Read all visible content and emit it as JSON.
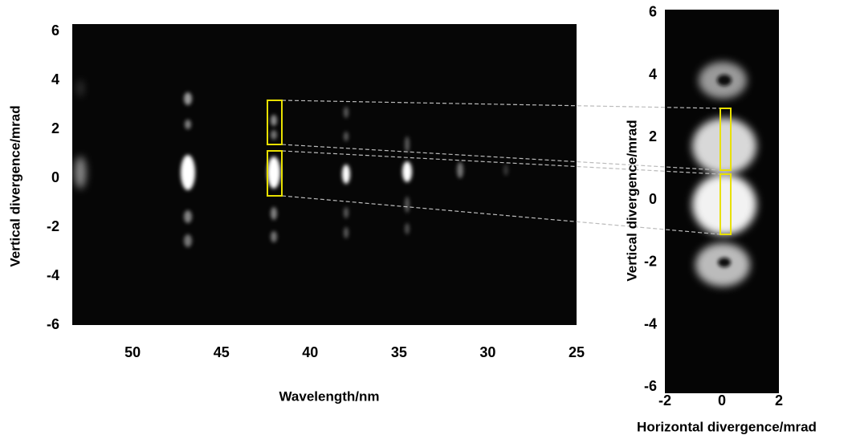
{
  "chart_data": [
    {
      "type": "image",
      "x_label": "Wavelength/nm",
      "y_label": "Vertical divergence/mrad",
      "xlim": [
        53.4,
        25
      ],
      "ylim": [
        -6,
        6.3
      ],
      "xticks": [
        50,
        45,
        40,
        35,
        30,
        25
      ],
      "yticks": [
        6,
        4,
        2,
        0,
        -2,
        -4,
        -6
      ]
    },
    {
      "type": "image",
      "x_label": "Horizontal divergence/mrad",
      "y_label": "Vertical divergence/mrad",
      "xlim": [
        -2,
        2
      ],
      "ylim": [
        -6.2,
        6.1
      ],
      "xticks": [
        -2,
        0,
        2
      ],
      "yticks": [
        6,
        4,
        2,
        0,
        -2,
        -4,
        -6
      ]
    }
  ]
}
